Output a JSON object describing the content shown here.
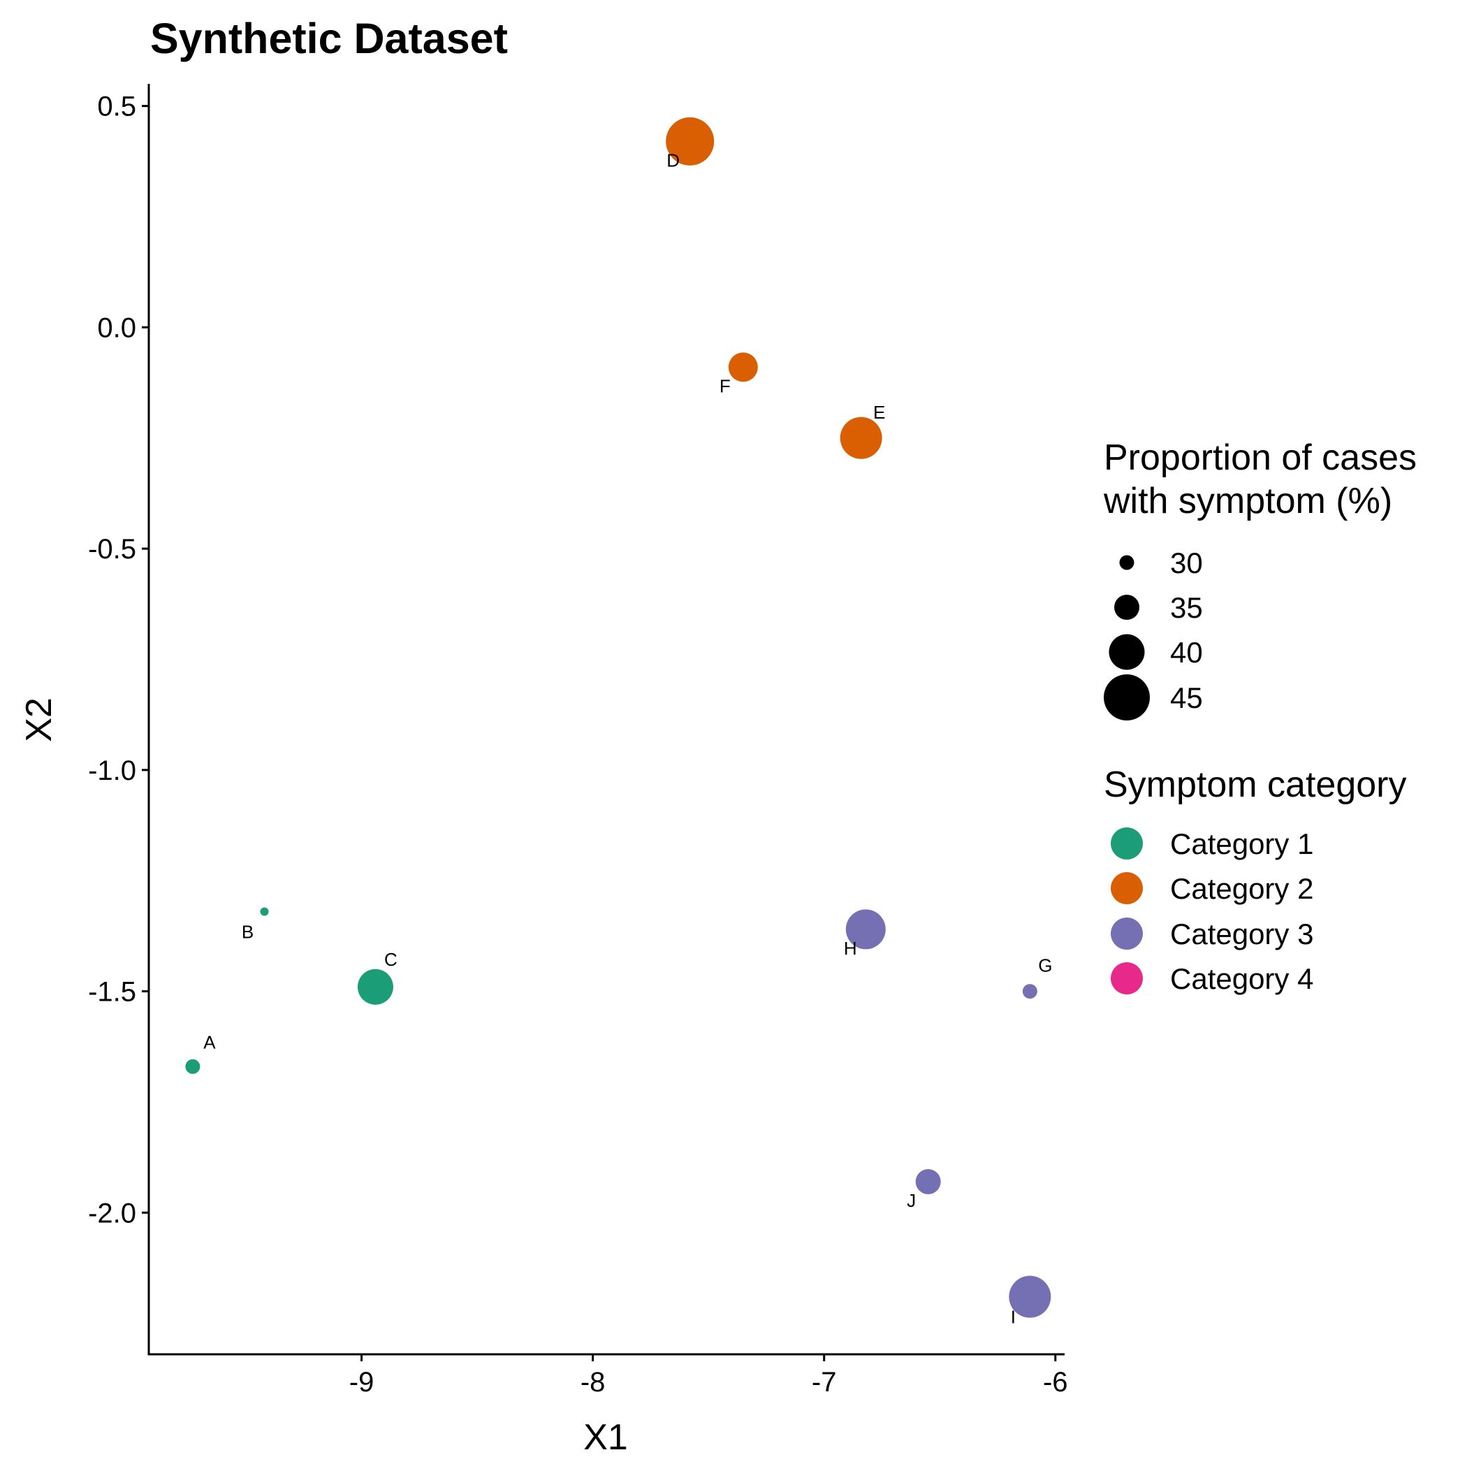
{
  "chart_data": {
    "type": "scatter",
    "title": "Synthetic Dataset",
    "xlabel": "X1",
    "ylabel": "X2",
    "xlim": [
      -9.92,
      -5.96
    ],
    "ylim": [
      -2.32,
      0.55
    ],
    "xticks": [
      -9,
      -8,
      -7,
      -6
    ],
    "xtick_labels": [
      "-9",
      "-8",
      "-7",
      "-6"
    ],
    "yticks": [
      0.5,
      0.0,
      -0.5,
      -1.0,
      -1.5,
      -2.0
    ],
    "ytick_labels": [
      "0.5",
      "0.0",
      "-0.5",
      "-1.0",
      "-1.5",
      "-2.0"
    ],
    "grid": false,
    "points": [
      {
        "label": "A",
        "x": -9.73,
        "y": -1.67,
        "size": 30,
        "category": "Category 1"
      },
      {
        "label": "B",
        "x": -9.42,
        "y": -1.32,
        "size": 27,
        "category": "Category 1"
      },
      {
        "label": "C",
        "x": -8.94,
        "y": -1.49,
        "size": 40,
        "category": "Category 1"
      },
      {
        "label": "D",
        "x": -7.58,
        "y": 0.42,
        "size": 46,
        "category": "Category 2"
      },
      {
        "label": "E",
        "x": -6.84,
        "y": -0.25,
        "size": 43,
        "category": "Category 2"
      },
      {
        "label": "F",
        "x": -7.35,
        "y": -0.09,
        "size": 37,
        "category": "Category 2"
      },
      {
        "label": "G",
        "x": -6.11,
        "y": -1.5,
        "size": 30,
        "category": "Category 3"
      },
      {
        "label": "H",
        "x": -6.82,
        "y": -1.36,
        "size": 42,
        "category": "Category 3"
      },
      {
        "label": "I",
        "x": -6.11,
        "y": -2.19,
        "size": 43,
        "category": "Category 3"
      },
      {
        "label": "J",
        "x": -6.55,
        "y": -1.93,
        "size": 35,
        "category": "Category 3"
      }
    ],
    "size_legend": {
      "title_lines": [
        "Proportion of cases",
        "with symptom (%)"
      ],
      "values": [
        30,
        35,
        40,
        45
      ],
      "labels": [
        "30",
        "35",
        "40",
        "45"
      ]
    },
    "color_legend": {
      "title": "Symptom category",
      "items": [
        {
          "label": "Category 1",
          "color": "#1b9e77"
        },
        {
          "label": "Category 2",
          "color": "#d95f02"
        },
        {
          "label": "Category 3",
          "color": "#7570b3"
        },
        {
          "label": "Category 4",
          "color": "#e7298a"
        }
      ]
    },
    "legend_position": "right"
  }
}
